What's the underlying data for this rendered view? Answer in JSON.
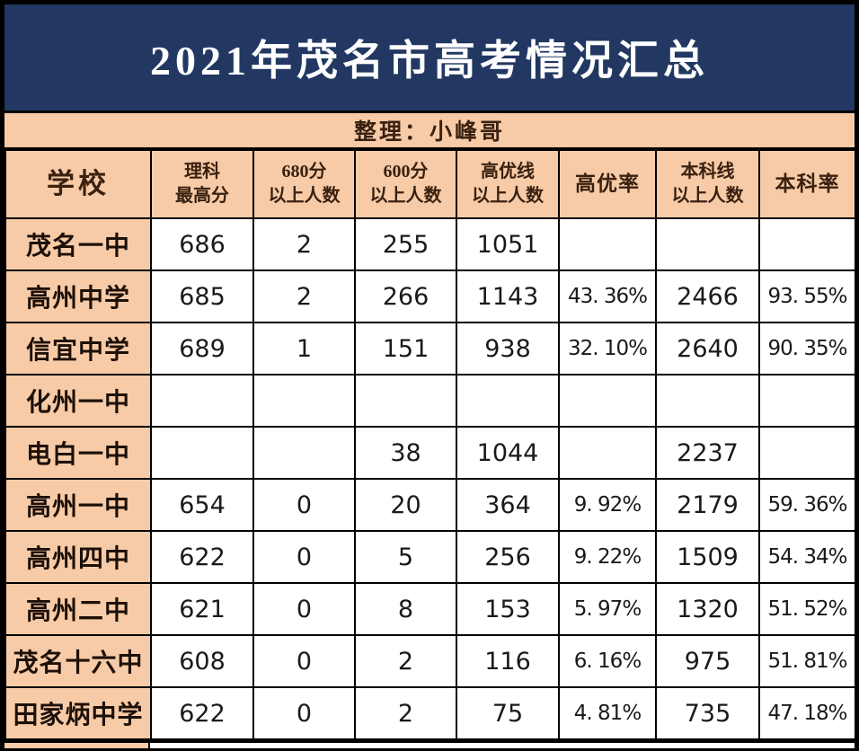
{
  "title": "2021年茂名市高考情况汇总",
  "subtitle": "整理：小峰哥",
  "colors": {
    "title_bg": "#223862",
    "row_header_bg": "#f7cba7",
    "grid_border": "#000000",
    "title_text": "#ffffff",
    "header_text": "#3a2110",
    "value_text": "#1a1a1a"
  },
  "table": {
    "headers": [
      {
        "lines": [
          "学校"
        ]
      },
      {
        "lines": [
          "理科",
          "最高分"
        ]
      },
      {
        "lines": [
          "680分",
          "以上人数"
        ]
      },
      {
        "lines": [
          "600分",
          "以上人数"
        ]
      },
      {
        "lines": [
          "高优线",
          "以上人数"
        ]
      },
      {
        "lines": [
          "高优率"
        ]
      },
      {
        "lines": [
          "本科线",
          "以上人数"
        ]
      },
      {
        "lines": [
          "本科率"
        ]
      }
    ],
    "rows": [
      {
        "school": "茂名一中",
        "cells": [
          "686",
          "2",
          "255",
          "1051",
          "",
          "",
          ""
        ]
      },
      {
        "school": "高州中学",
        "cells": [
          "685",
          "2",
          "266",
          "1143",
          "43. 36%",
          "2466",
          "93. 55%"
        ]
      },
      {
        "school": "信宜中学",
        "cells": [
          "689",
          "1",
          "151",
          "938",
          "32. 10%",
          "2640",
          "90. 35%"
        ]
      },
      {
        "school": "化州一中",
        "cells": [
          "",
          "",
          "",
          "",
          "",
          "",
          ""
        ]
      },
      {
        "school": "电白一中",
        "cells": [
          "",
          "",
          "38",
          "1044",
          "",
          "2237",
          ""
        ]
      },
      {
        "school": "高州一中",
        "cells": [
          "654",
          "0",
          "20",
          "364",
          "9. 92%",
          "2179",
          "59. 36%"
        ]
      },
      {
        "school": "高州四中",
        "cells": [
          "622",
          "0",
          "5",
          "256",
          "9. 22%",
          "1509",
          "54. 34%"
        ]
      },
      {
        "school": "高州二中",
        "cells": [
          "621",
          "0",
          "8",
          "153",
          "5. 97%",
          "1320",
          "51. 52%"
        ]
      },
      {
        "school": "茂名十六中",
        "cells": [
          "608",
          "0",
          "2",
          "116",
          "6. 16%",
          "975",
          "51. 81%"
        ]
      },
      {
        "school": "田家炳中学",
        "cells": [
          "622",
          "0",
          "2",
          "75",
          "4. 81%",
          "735",
          "47. 18%"
        ]
      }
    ]
  },
  "chart_data": {
    "type": "table",
    "title": "2021年茂名市高考情况汇总",
    "subtitle": "整理：小峰哥",
    "columns": [
      "学校",
      "理科最高分",
      "680分以上人数",
      "600分以上人数",
      "高优线以上人数",
      "高优率",
      "本科线以上人数",
      "本科率"
    ],
    "rows": [
      [
        "茂名一中",
        686,
        2,
        255,
        1051,
        null,
        null,
        null
      ],
      [
        "高州中学",
        685,
        2,
        266,
        1143,
        "43.36%",
        2466,
        "93.55%"
      ],
      [
        "信宜中学",
        689,
        1,
        151,
        938,
        "32.10%",
        2640,
        "90.35%"
      ],
      [
        "化州一中",
        null,
        null,
        null,
        null,
        null,
        null,
        null
      ],
      [
        "电白一中",
        null,
        null,
        38,
        1044,
        null,
        2237,
        null
      ],
      [
        "高州一中",
        654,
        0,
        20,
        364,
        "9.92%",
        2179,
        "59.36%"
      ],
      [
        "高州四中",
        622,
        0,
        5,
        256,
        "9.22%",
        1509,
        "54.34%"
      ],
      [
        "高州二中",
        621,
        0,
        8,
        153,
        "5.97%",
        1320,
        "51.52%"
      ],
      [
        "茂名十六中",
        608,
        0,
        2,
        116,
        "6.16%",
        975,
        "51.81%"
      ],
      [
        "田家炳中学",
        622,
        0,
        2,
        75,
        "4.81%",
        735,
        "47.18%"
      ]
    ]
  }
}
